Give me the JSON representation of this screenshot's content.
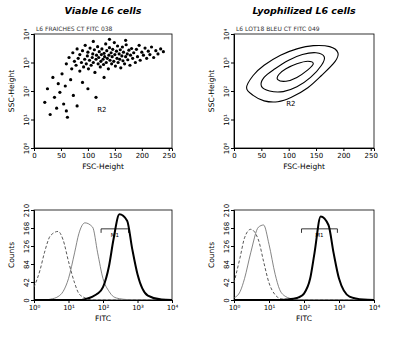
{
  "chart_data": [
    {
      "type": "scatter",
      "title": "Viable L6 cells",
      "subtitle": "L6 FRAICHES CT FITC 038",
      "x_label": "FSC-Height",
      "y_label": "SSC-Height",
      "log": "y",
      "color": "#000000",
      "xlim": [
        0,
        256
      ],
      "xticks": [
        0,
        50,
        100,
        150,
        200,
        250
      ],
      "ylim": [
        1,
        10000
      ],
      "yticks": [
        {
          "value": 1,
          "label": "10⁰"
        },
        {
          "value": 10,
          "label": "10¹"
        },
        {
          "value": 100,
          "label": "10²"
        },
        {
          "value": 1000,
          "label": "10³"
        },
        {
          "value": 10000,
          "label": "10⁴"
        }
      ],
      "x": [
        60,
        65,
        70,
        72,
        75,
        78,
        80,
        82,
        85,
        85,
        88,
        90,
        92,
        94,
        95,
        97,
        99,
        100,
        101,
        103,
        104,
        106,
        108,
        109,
        110,
        112,
        113,
        115,
        116,
        118,
        119,
        120,
        121,
        123,
        124,
        125,
        126,
        128,
        129,
        130,
        131,
        133,
        134,
        135,
        136,
        138,
        139,
        140,
        141,
        143,
        144,
        145,
        146,
        148,
        149,
        150,
        151,
        153,
        154,
        155,
        156,
        158,
        159,
        160,
        161,
        163,
        164,
        165,
        166,
        168,
        170,
        171,
        173,
        174,
        176,
        178,
        179,
        181,
        183,
        185,
        188,
        190,
        192,
        195,
        197,
        200,
        203,
        206,
        209,
        212,
        215,
        218,
        222,
        226,
        230,
        235,
        240,
        110,
        140,
        170,
        20,
        25,
        30,
        35,
        38,
        42,
        45,
        48,
        52,
        55,
        58,
        62,
        68,
        73,
        80,
        90,
        100,
        115,
        130,
        60
      ],
      "y": [
        900,
        1500,
        600,
        2200,
        1100,
        800,
        3000,
        1400,
        500,
        1900,
        1000,
        2600,
        700,
        1300,
        4000,
        900,
        1700,
        2300,
        600,
        1200,
        3200,
        800,
        1500,
        2000,
        1000,
        2800,
        450,
        1300,
        1800,
        3600,
        900,
        1500,
        2400,
        700,
        1100,
        1900,
        3000,
        1300,
        850,
        2100,
        1600,
        4500,
        1000,
        2600,
        1400,
        600,
        1800,
        3300,
        1200,
        2200,
        900,
        1600,
        2900,
        1100,
        5000,
        1900,
        750,
        2500,
        1400,
        3800,
        1000,
        2000,
        1300,
        2800,
        650,
        1700,
        3500,
        1150,
        2300,
        900,
        1600,
        4200,
        2000,
        1250,
        2700,
        800,
        1800,
        3100,
        1400,
        2200,
        1000,
        2900,
        1600,
        4000,
        1200,
        2300,
        1800,
        3200,
        1400,
        2500,
        1900,
        3500,
        1500,
        2600,
        2000,
        3000,
        2400,
        5500,
        6500,
        6000,
        40,
        120,
        15,
        300,
        60,
        25,
        180,
        90,
        400,
        35,
        150,
        12,
        250,
        70,
        30,
        200,
        120,
        60,
        300,
        20
      ],
      "annotations": [
        {
          "text": "R2",
          "x": 126,
          "y": 19
        }
      ]
    },
    {
      "type": "contour",
      "title": "Lyophilized L6 cells",
      "subtitle": "L6 LOT18 BLEU CT FITC 049",
      "x_label": "FSC-Height",
      "y_label": "SSC-Height",
      "log": "y",
      "color": "#000000",
      "xlim": [
        0,
        256
      ],
      "xticks": [
        0,
        50,
        100,
        150,
        200,
        250
      ],
      "ylim": [
        1,
        10000
      ],
      "yticks": [
        {
          "value": 1,
          "label": "10⁰"
        },
        {
          "value": 10,
          "label": "10¹"
        },
        {
          "value": 100,
          "label": "10²"
        },
        {
          "value": 1000,
          "label": "10³"
        },
        {
          "value": 10000,
          "label": "10⁴"
        }
      ],
      "contours": [
        {
          "x": [
            23,
            35,
            55,
            80,
            105,
            135,
            160,
            185,
            190,
            175,
            145,
            115,
            85,
            55,
            35
          ],
          "y": [
            130,
            70,
            45,
            42,
            60,
            130,
            350,
            1100,
            2200,
            3600,
            3900,
            3000,
            1800,
            800,
            350
          ]
        },
        {
          "x": [
            50,
            65,
            90,
            115,
            140,
            160,
            165,
            150,
            125,
            100,
            75,
            55
          ],
          "y": [
            150,
            100,
            95,
            140,
            300,
            800,
            1600,
            2200,
            1900,
            1200,
            600,
            300
          ]
        },
        {
          "x": [
            80,
            95,
            115,
            135,
            145,
            135,
            115,
            95,
            82
          ],
          "y": [
            250,
            220,
            300,
            550,
            900,
            1100,
            900,
            600,
            380
          ]
        }
      ],
      "annotations": [
        {
          "text": "R2",
          "x": 104,
          "y": 29
        }
      ]
    },
    {
      "type": "line",
      "x_label": "FITC",
      "y_label": "Counts",
      "log": "x",
      "xlim": [
        1,
        10000
      ],
      "xticks": [
        {
          "value": 1,
          "label": "10⁰"
        },
        {
          "value": 10,
          "label": "10¹"
        },
        {
          "value": 100,
          "label": "10²"
        },
        {
          "value": 1000,
          "label": "10³"
        },
        {
          "value": 10000,
          "label": "10⁴"
        }
      ],
      "ylim": [
        0,
        210
      ],
      "yticks": [
        0,
        42,
        84,
        126,
        168,
        210
      ],
      "x": [
        1,
        1.5,
        2,
        3,
        5,
        7,
        10,
        15,
        20,
        30,
        50,
        70,
        100,
        150,
        200,
        300,
        500,
        700,
        1000,
        2000,
        5000,
        10000
      ],
      "series": [
        {
          "color": "#444444",
          "line_style": "dashed",
          "values": [
            30,
            70,
            110,
            150,
            160,
            140,
            90,
            40,
            15,
            5,
            0,
            0,
            0,
            0,
            0,
            0,
            0,
            0,
            0,
            0,
            0,
            0
          ]
        },
        {
          "color": "#666666",
          "line_style": "solid",
          "values": [
            0,
            0,
            0,
            2,
            8,
            20,
            50,
            110,
            155,
            180,
            170,
            110,
            50,
            20,
            8,
            3,
            1,
            0,
            0,
            0,
            0,
            0
          ]
        },
        {
          "color": "#000000",
          "line_style": "bold",
          "values": [
            0,
            0,
            0,
            0,
            0,
            0,
            0,
            0,
            0,
            2,
            8,
            15,
            30,
            80,
            140,
            200,
            185,
            120,
            60,
            10,
            1,
            0
          ]
        }
      ],
      "annotations": [
        {
          "text": "M1",
          "x": [
            88,
            550
          ],
          "y": 166
        }
      ]
    },
    {
      "type": "line",
      "x_label": "FITC",
      "y_label": "Counts",
      "log": "x",
      "xlim": [
        1,
        10000
      ],
      "xticks": [
        {
          "value": 1,
          "label": "10⁰"
        },
        {
          "value": 10,
          "label": "10¹"
        },
        {
          "value": 100,
          "label": "10²"
        },
        {
          "value": 1000,
          "label": "10³"
        },
        {
          "value": 10000,
          "label": "10⁴"
        }
      ],
      "ylim": [
        0,
        210
      ],
      "yticks": [
        0,
        42,
        84,
        126,
        168,
        210
      ],
      "x": [
        1,
        1.5,
        2,
        3,
        5,
        7,
        10,
        15,
        20,
        30,
        50,
        70,
        100,
        150,
        200,
        300,
        500,
        700,
        1000,
        2000,
        5000,
        10000
      ],
      "series": [
        {
          "color": "#444444",
          "line_style": "dashed",
          "values": [
            40,
            100,
            145,
            165,
            140,
            90,
            40,
            12,
            4,
            1,
            0,
            0,
            0,
            0,
            0,
            0,
            0,
            0,
            0,
            0,
            0,
            0
          ]
        },
        {
          "color": "#666666",
          "line_style": "solid",
          "values": [
            5,
            20,
            50,
            110,
            170,
            175,
            130,
            60,
            25,
            8,
            2,
            0,
            0,
            0,
            0,
            0,
            0,
            0,
            0,
            0,
            0,
            0
          ]
        },
        {
          "color": "#000000",
          "line_style": "bold",
          "values": [
            0,
            0,
            0,
            0,
            0,
            0,
            0,
            0,
            0,
            1,
            3,
            6,
            15,
            50,
            110,
            195,
            175,
            110,
            50,
            8,
            1,
            0
          ]
        }
      ],
      "annotations": [
        {
          "text": "M1",
          "x": [
            85,
            900
          ],
          "y": 166
        }
      ]
    }
  ]
}
